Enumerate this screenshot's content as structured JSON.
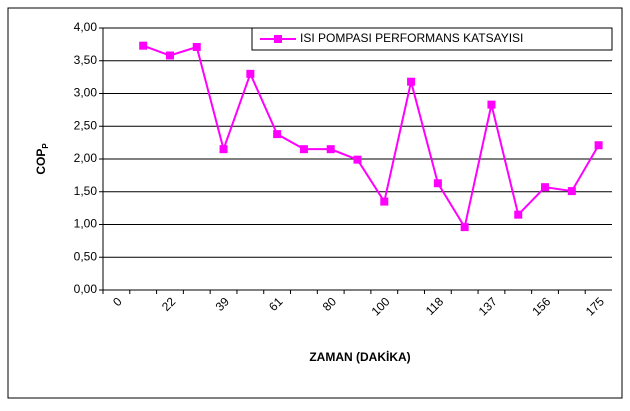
{
  "chart_data": {
    "type": "line",
    "xlabel": "ZAMAN (DAKİKA)",
    "ylabel": "COP",
    "ylabel_sub": "P",
    "categories": [
      "0",
      null,
      "22",
      null,
      "39",
      null,
      "61",
      null,
      "80",
      null,
      "100",
      null,
      "118",
      null,
      "137",
      null,
      "156",
      null,
      "175"
    ],
    "series": [
      {
        "name": "ISI POMPASI PERFORMANS KATSAYISI",
        "color": "#ff00ff",
        "values": [
          null,
          3.73,
          3.58,
          3.71,
          2.15,
          3.3,
          2.38,
          2.15,
          2.15,
          1.99,
          1.35,
          3.18,
          1.63,
          0.96,
          2.83,
          1.15,
          1.57,
          1.51,
          2.21
        ]
      }
    ],
    "ylim": [
      0,
      4
    ],
    "yticks": [
      {
        "value": 0,
        "label": "0,00"
      },
      {
        "value": 0.5,
        "label": "0,50"
      },
      {
        "value": 1,
        "label": "1,00"
      },
      {
        "value": 1.5,
        "label": "1,50"
      },
      {
        "value": 2,
        "label": "2,00"
      },
      {
        "value": 2.5,
        "label": "2,50"
      },
      {
        "value": 3,
        "label": "3,00"
      },
      {
        "value": 3.5,
        "label": "3,50"
      },
      {
        "value": 4,
        "label": "4,00"
      }
    ],
    "grid": true,
    "legend": "top-right"
  }
}
